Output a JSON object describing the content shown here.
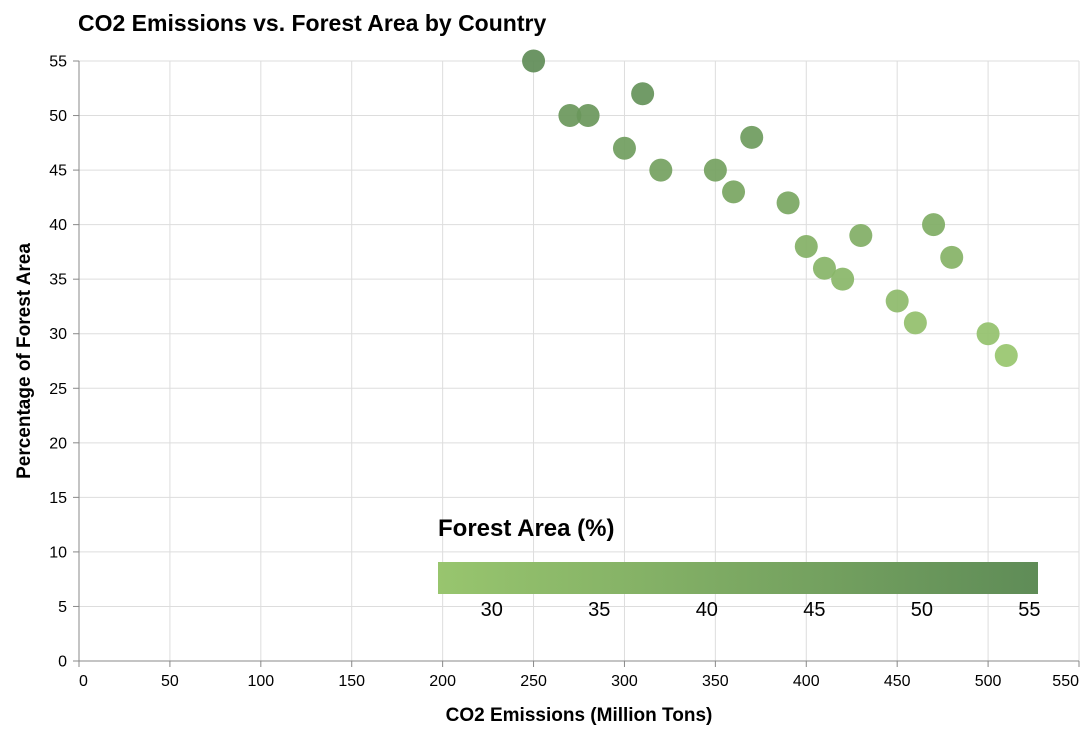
{
  "chart_data": {
    "type": "scatter",
    "title": "CO2 Emissions vs. Forest Area by Country",
    "xlabel": "CO2 Emissions (Million Tons)",
    "ylabel": "Percentage of Forest Area",
    "xlim": [
      0,
      550
    ],
    "ylim": [
      0,
      55
    ],
    "x_ticks": [
      0,
      50,
      100,
      150,
      200,
      250,
      300,
      350,
      400,
      450,
      500,
      550
    ],
    "y_ticks": [
      0,
      5,
      10,
      15,
      20,
      25,
      30,
      35,
      40,
      45,
      50,
      55
    ],
    "grid": true,
    "points": [
      {
        "x": 250,
        "y": 55
      },
      {
        "x": 270,
        "y": 50
      },
      {
        "x": 280,
        "y": 50
      },
      {
        "x": 300,
        "y": 47
      },
      {
        "x": 310,
        "y": 52
      },
      {
        "x": 320,
        "y": 45
      },
      {
        "x": 350,
        "y": 45
      },
      {
        "x": 360,
        "y": 43
      },
      {
        "x": 370,
        "y": 48
      },
      {
        "x": 390,
        "y": 42
      },
      {
        "x": 400,
        "y": 38
      },
      {
        "x": 410,
        "y": 36
      },
      {
        "x": 420,
        "y": 35
      },
      {
        "x": 430,
        "y": 39
      },
      {
        "x": 450,
        "y": 33
      },
      {
        "x": 460,
        "y": 31
      },
      {
        "x": 470,
        "y": 40
      },
      {
        "x": 480,
        "y": 37
      },
      {
        "x": 500,
        "y": 30
      },
      {
        "x": 510,
        "y": 28
      }
    ],
    "color_encoding": {
      "field": "y",
      "legend_title": "Forest Area (%)",
      "legend_ticks": [
        30,
        35,
        40,
        45,
        50,
        55
      ],
      "domain": [
        28,
        55
      ],
      "color_low": "#98c56e",
      "color_high": "#5f8c57",
      "legend_placement": "bottom-right"
    }
  }
}
